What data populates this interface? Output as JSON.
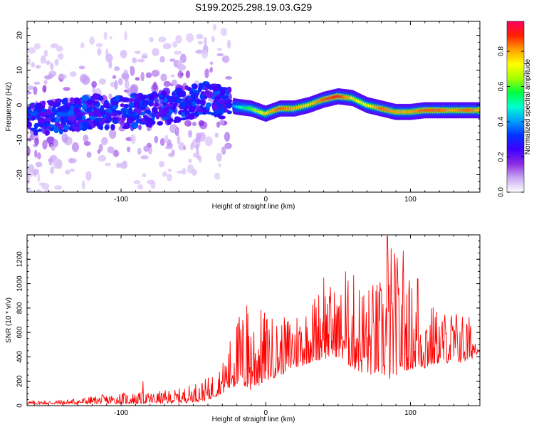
{
  "figure": {
    "title": "S199.2025.298.19.03.G29"
  },
  "colorbar": {
    "label": "Normalized spectral amplitude",
    "ticks": [
      "0.0",
      "0.2",
      "0.4",
      "0.6",
      "0.8"
    ],
    "tick_values": [
      0.0,
      0.2,
      0.4,
      0.6,
      0.8
    ],
    "range": [
      0.0,
      0.97
    ],
    "colormap": [
      "#ffffff",
      "#c9a7f4",
      "#8a2be2",
      "#3f00ff",
      "#0033ff",
      "#00a0ff",
      "#00ffd0",
      "#00ff40",
      "#a8ff00",
      "#ffff00",
      "#ffa000",
      "#ff2000",
      "#ff0060"
    ]
  },
  "chart_data": [
    {
      "type": "heatmap",
      "title": "",
      "xlabel": "Height of straight line (km)",
      "ylabel": "Frequency (Hz)",
      "xlim": [
        -165,
        148
      ],
      "ylim": [
        -25,
        24
      ],
      "xticks": [
        "-100",
        "0",
        "100"
      ],
      "xtick_values": [
        -100,
        0,
        100
      ],
      "yticks": [
        "20",
        "10",
        "0",
        "-10",
        "-20"
      ],
      "ytick_values": [
        20,
        10,
        0,
        -10,
        -20
      ],
      "ridge": {
        "description": "Frequency of peak spectral amplitude vs height",
        "x": [
          -165,
          -140,
          -120,
          -100,
          -80,
          -60,
          -40,
          -25,
          -20,
          -10,
          0,
          10,
          20,
          30,
          40,
          50,
          60,
          70,
          80,
          90,
          100,
          110,
          120,
          130,
          140,
          148
        ],
        "y": [
          -4,
          -3,
          -2,
          -2,
          -1.5,
          0,
          2,
          0,
          -0.5,
          -1,
          -2.5,
          -1,
          -1,
          0,
          1.5,
          2.5,
          2,
          0,
          -1,
          -2,
          -2,
          -1.5,
          -1.5,
          -1.5,
          -1.5,
          -1.5
        ],
        "amplitude": [
          0.3,
          0.3,
          0.3,
          0.32,
          0.3,
          0.32,
          0.35,
          0.3,
          0.45,
          0.6,
          0.75,
          0.85,
          0.8,
          0.75,
          0.85,
          0.9,
          0.75,
          0.7,
          0.85,
          0.8,
          0.8,
          0.85,
          0.85,
          0.8,
          0.85,
          0.8
        ]
      },
      "noise_region": {
        "x_range": [
          -165,
          -25
        ],
        "y_range": [
          -25,
          24
        ],
        "amplitude_range": [
          0.05,
          0.35
        ]
      }
    },
    {
      "type": "line",
      "title": "",
      "xlabel": "Height of straight line (km)",
      "ylabel": "SNR (10 * v/v)",
      "xlim": [
        -165,
        148
      ],
      "ylim": [
        0,
        1400
      ],
      "xticks": [
        "-100",
        "0",
        "100"
      ],
      "xtick_values": [
        -100,
        0,
        100
      ],
      "yticks": [
        "0",
        "200",
        "400",
        "600",
        "800",
        "1000",
        "1200"
      ],
      "ytick_values": [
        0,
        200,
        400,
        600,
        800,
        1000,
        1200
      ],
      "series": [
        {
          "name": "SNR",
          "color": "#ff0000",
          "envelope": {
            "x": [
              -165,
              -140,
              -120,
              -100,
              -80,
              -60,
              -40,
              -30,
              -20,
              -10,
              0,
              10,
              20,
              30,
              40,
              50,
              60,
              70,
              80,
              85,
              90,
              100,
              110,
              120,
              130,
              140,
              148
            ],
            "y_min": [
              10,
              12,
              15,
              15,
              18,
              20,
              40,
              100,
              150,
              120,
              200,
              250,
              300,
              350,
              380,
              400,
              300,
              250,
              250,
              200,
              250,
              300,
              300,
              350,
              350,
              350,
              450
            ],
            "y_max": [
              40,
              50,
              80,
              110,
              110,
              140,
              230,
              350,
              750,
              850,
              780,
              700,
              800,
              850,
              1050,
              950,
              1100,
              1020,
              1050,
              1390,
              1270,
              1040,
              900,
              780,
              800,
              760,
              500
            ]
          },
          "notable_peaks": [
            {
              "x": -85,
              "y": 200
            },
            {
              "x": -20,
              "y": 650
            },
            {
              "x": -13,
              "y": 820
            },
            {
              "x": 40,
              "y": 1050
            },
            {
              "x": 55,
              "y": 1100
            },
            {
              "x": 84,
              "y": 1390
            },
            {
              "x": 95,
              "y": 1270
            },
            {
              "x": 105,
              "y": 1040
            }
          ]
        }
      ]
    }
  ]
}
